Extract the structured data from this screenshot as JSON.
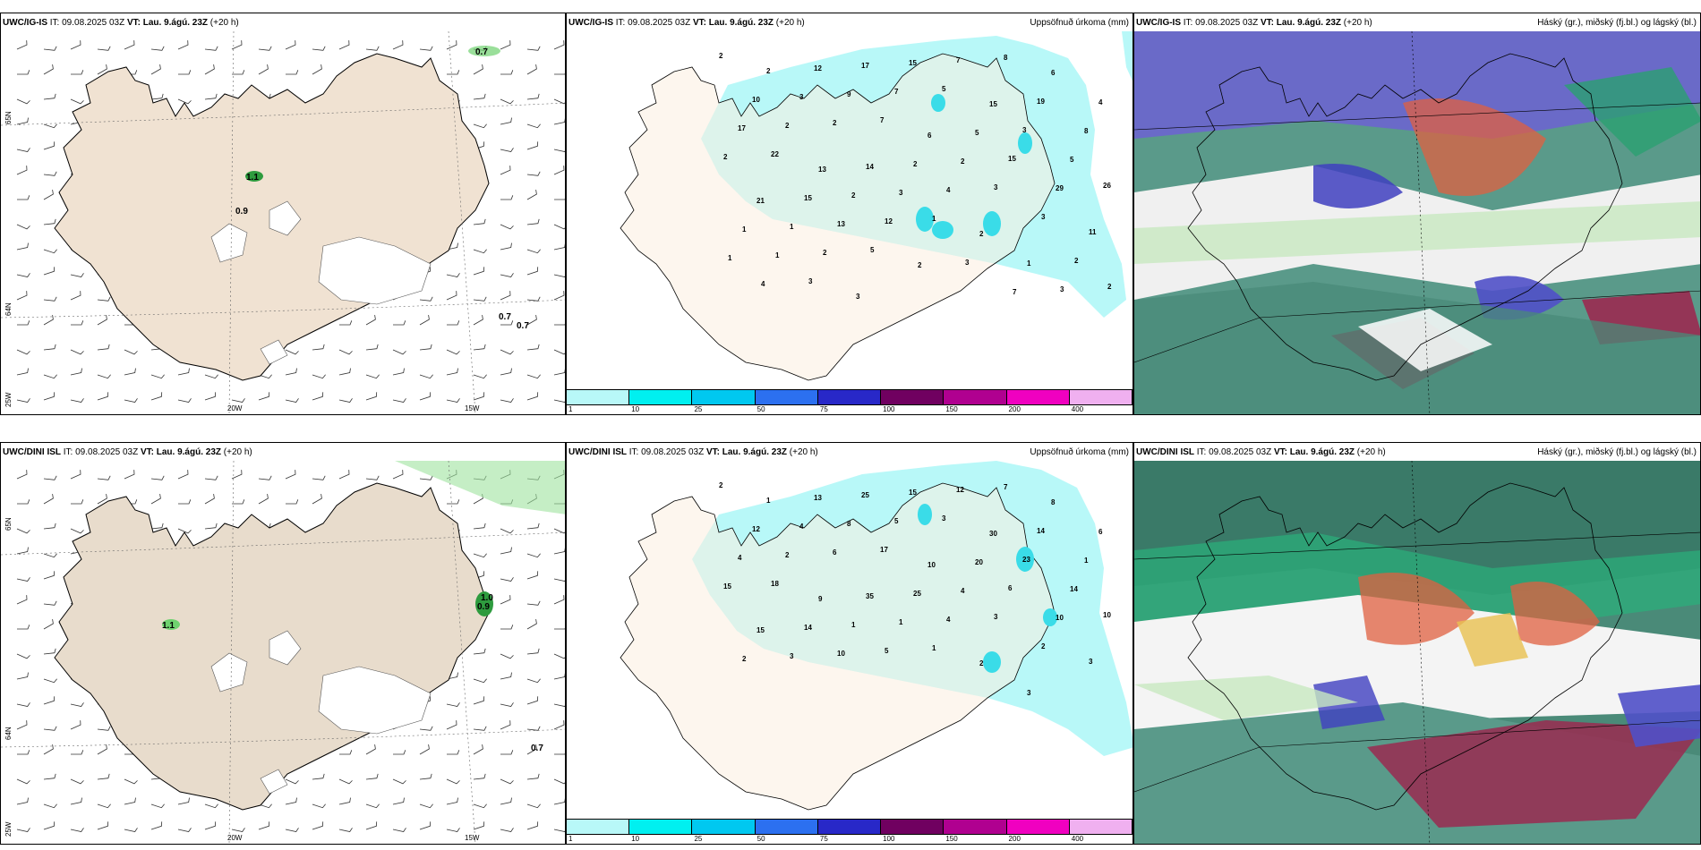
{
  "header_it_label": "IT:",
  "header_vt_label": "VT:",
  "issue_time": "09.08.2025 03Z",
  "valid_time": "Lau. 9.ágú. 23Z",
  "lead": "(+20 h)",
  "rows": [
    {
      "model": "UWC/IG-IS"
    },
    {
      "model": "UWC/DINI ISL"
    }
  ],
  "precip_title": "Uppsöfnuð úrkoma (mm)",
  "cloud_title": "Háský (gr.), miðský (fj.bl.) og lágský (bl.)",
  "lat_labels": [
    "65N",
    "64N"
  ],
  "lon_labels": [
    "25W",
    "20W",
    "15W"
  ],
  "colorbar": {
    "labels": [
      "1",
      "10",
      "25",
      "50",
      "75",
      "100",
      "150",
      "200",
      "400"
    ],
    "colors": [
      "#b8f8f8",
      "#00f0f0",
      "#00c8f0",
      "#2c70f0",
      "#2828c8",
      "#700060",
      "#b00090",
      "#f000c0",
      "#f0b0f0"
    ]
  },
  "wind_values_top": [
    "0.7",
    "1.1",
    "0.9",
    "0.7",
    "0.7"
  ],
  "wind_values_bottom": [
    "1.1",
    "1.0",
    "0.9",
    "0.7"
  ],
  "precip_values_top": [
    "2",
    "2",
    "12",
    "17",
    "15",
    "7",
    "8",
    "6",
    "4",
    "10",
    "3",
    "9",
    "7",
    "5",
    "15",
    "19",
    "8",
    "17",
    "2",
    "2",
    "7",
    "6",
    "5",
    "3",
    "5",
    "2",
    "22",
    "13",
    "14",
    "2",
    "2",
    "15",
    "29",
    "26",
    "21",
    "15",
    "2",
    "3",
    "4",
    "3",
    "3",
    "11",
    "1",
    "1",
    "13",
    "12",
    "1",
    "2",
    "1",
    "2",
    "1",
    "1",
    "2",
    "5",
    "2",
    "3",
    "7",
    "3",
    "2",
    "4",
    "3",
    "3"
  ],
  "precip_values_bottom": [
    "2",
    "1",
    "13",
    "25",
    "15",
    "12",
    "7",
    "8",
    "6",
    "12",
    "4",
    "8",
    "5",
    "3",
    "30",
    "14",
    "1",
    "4",
    "2",
    "6",
    "17",
    "10",
    "20",
    "23",
    "14",
    "15",
    "18",
    "9",
    "35",
    "25",
    "4",
    "6",
    "10",
    "10",
    "15",
    "14",
    "1",
    "1",
    "4",
    "3",
    "2",
    "3",
    "2",
    "3",
    "10",
    "5",
    "1",
    "2",
    "3"
  ]
}
